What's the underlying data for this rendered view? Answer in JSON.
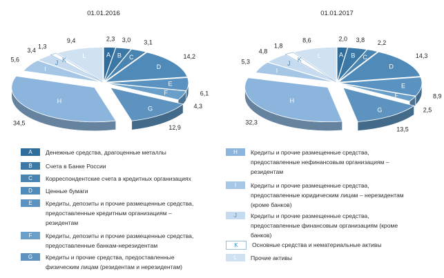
{
  "chart_data": {
    "type": "pie",
    "categories": [
      "A",
      "B",
      "C",
      "D",
      "E",
      "F",
      "G",
      "H",
      "I",
      "J",
      "K",
      "L"
    ],
    "colors": {
      "A": "#2f6d9c",
      "B": "#3b78a6",
      "C": "#4a84b0",
      "D": "#4f8ab8",
      "E": "#5a93c1",
      "F": "#6a9fc9",
      "G": "#5e93bf",
      "H": "#8cb5dd",
      "I": "#a6c6e5",
      "J": "#c6dbef",
      "K": "#ffffff",
      "L": "#d0e2f2"
    },
    "label_colors": {
      "A": "#ffffff",
      "B": "#ffffff",
      "C": "#ffffff",
      "D": "#ffffff",
      "E": "#ffffff",
      "F": "#ffffff",
      "G": "#ffffff",
      "H": "#ffffff",
      "I": "#ffffff",
      "J": "#3a8cc8",
      "K": "#3a8cc8",
      "L": "#ffffff"
    },
    "charts": [
      {
        "title": "01.01.2016",
        "values": [
          2.3,
          3.0,
          3.1,
          14.2,
          6.1,
          4.3,
          12.9,
          34.5,
          5.6,
          3.4,
          1.3,
          9.4
        ],
        "value_labels": [
          "2,3",
          "3,0",
          "3,1",
          "14,2",
          "6,1",
          "4,3",
          "12,9",
          "34,5",
          "5,6",
          "3,4",
          "1,3",
          "9,4"
        ]
      },
      {
        "title": "01.01.2017",
        "values": [
          2.0,
          3.8,
          2.2,
          14.3,
          8.9,
          2.5,
          13.5,
          32.3,
          5.3,
          4.8,
          1.8,
          8.6
        ],
        "value_labels": [
          "2,0",
          "3,8",
          "2,2",
          "14,3",
          "8,9",
          "2,5",
          "13,5",
          "32,3",
          "5,3",
          "4,8",
          "1,8",
          "8,6"
        ]
      }
    ],
    "legend": [
      {
        "key": "A",
        "text": "Денежные средства, драгоценные металлы"
      },
      {
        "key": "B",
        "text": "Счета в Банке России"
      },
      {
        "key": "C",
        "text": "Корреспондентские счета в кредитных организациях"
      },
      {
        "key": "D",
        "text": "Ценные бумаги"
      },
      {
        "key": "E",
        "text": "Кредиты, депозиты и прочие размещенные средства,\nпредоставленные кредитным организациям –\nрезидентам"
      },
      {
        "key": "F",
        "text": "Кредиты, депозиты и прочие размещенные средства,\nпредоставленные банкам-нерезидентам"
      },
      {
        "key": "G",
        "text": "Кредиты и прочие средства, предоставленные\nфизическим лицам (резидентам и нерезидентам)"
      },
      {
        "key": "H",
        "text": "Кредиты и прочие размещенные средства,\nпредоставленные нефинансовым организациям –\nрезидентам"
      },
      {
        "key": "I",
        "text": "Кредиты и прочие размещенные средства,\nпредоставленные юридическим лицам – нерезидентам\n(кроме банков)"
      },
      {
        "key": "J",
        "text": "Кредиты и прочие размещенные средства,\nпредоставленные финансовым организациям (кроме\nбанков)"
      },
      {
        "key": "K",
        "text": "Основные средства  и нематериальные активы"
      },
      {
        "key": "L",
        "text": "Прочие активы"
      }
    ]
  }
}
